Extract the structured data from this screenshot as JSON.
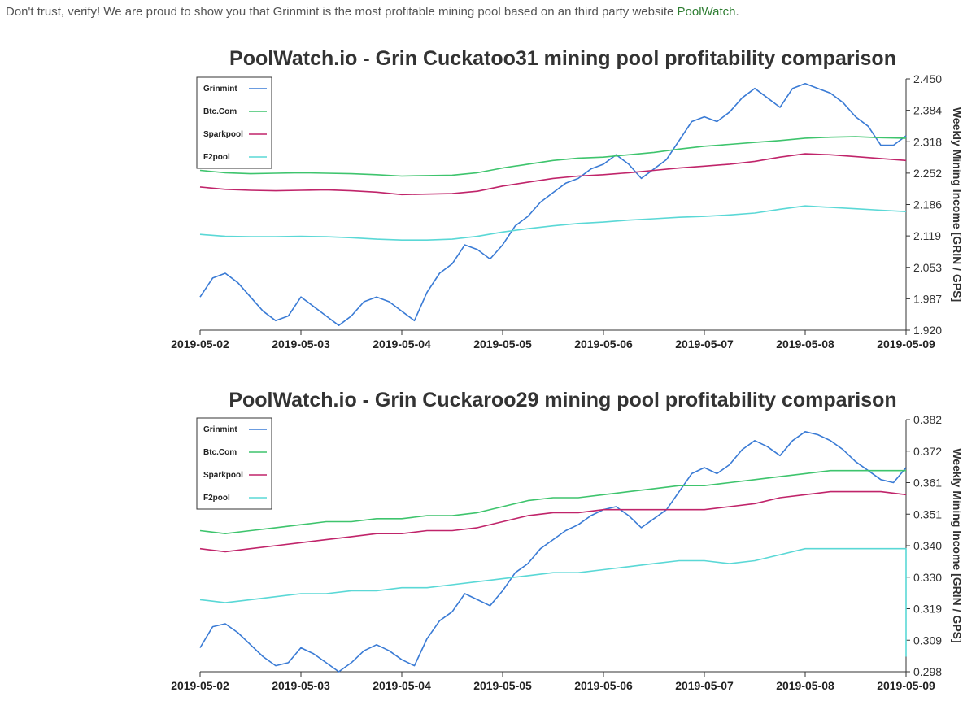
{
  "intro": {
    "text": "Don't trust, verify! We are proud to show you that Grinmint is the most profitable mining pool based on an third party website ",
    "link": "PoolWatch",
    "suffix": "."
  },
  "chart_data": [
    {
      "type": "line",
      "title": "PoolWatch.io - Grin Cuckatoo31 mining pool profitability comparison",
      "xlabel": "",
      "ylabel": "Weekly Mining Income [GRIN / GPS]",
      "x_ticks": [
        "2019-05-02",
        "2019-05-03",
        "2019-05-04",
        "2019-05-05",
        "2019-05-06",
        "2019-05-07",
        "2019-05-08",
        "2019-05-09"
      ],
      "y_ticks": [
        "1.920",
        "1.987",
        "2.053",
        "2.119",
        "2.186",
        "2.252",
        "2.318",
        "2.384",
        "2.450"
      ],
      "ylim": [
        1.92,
        2.45
      ],
      "legend_position": "top-left",
      "series": [
        {
          "name": "Grinmint",
          "color": "#3a7bd5",
          "x": [
            0,
            0.125,
            0.25,
            0.375,
            0.5,
            0.625,
            0.75,
            0.875,
            1,
            1.125,
            1.25,
            1.375,
            1.5,
            1.625,
            1.75,
            1.875,
            2,
            2.125,
            2.25,
            2.375,
            2.5,
            2.625,
            2.75,
            2.875,
            3,
            3.125,
            3.25,
            3.375,
            3.5,
            3.625,
            3.75,
            3.875,
            4,
            4.125,
            4.25,
            4.375,
            4.5,
            4.625,
            4.75,
            4.875,
            5,
            5.125,
            5.25,
            5.375,
            5.5,
            5.625,
            5.75,
            5.875,
            6,
            6.125,
            6.25,
            6.375,
            6.5,
            6.625,
            6.75,
            6.875,
            7
          ],
          "values": [
            1.99,
            2.03,
            2.04,
            2.02,
            1.99,
            1.96,
            1.94,
            1.95,
            1.99,
            1.97,
            1.95,
            1.93,
            1.95,
            1.98,
            1.99,
            1.98,
            1.96,
            1.94,
            2.0,
            2.04,
            2.06,
            2.1,
            2.09,
            2.07,
            2.1,
            2.14,
            2.16,
            2.19,
            2.21,
            2.23,
            2.24,
            2.26,
            2.27,
            2.29,
            2.27,
            2.24,
            2.26,
            2.28,
            2.32,
            2.36,
            2.37,
            2.36,
            2.38,
            2.41,
            2.43,
            2.41,
            2.39,
            2.43,
            2.44,
            2.43,
            2.42,
            2.4,
            2.37,
            2.35,
            2.31,
            2.31,
            2.33
          ]
        },
        {
          "name": "Btc.Com",
          "color": "#3ec46d",
          "x": [
            0,
            0.25,
            0.5,
            0.75,
            1,
            1.25,
            1.5,
            1.75,
            2,
            2.25,
            2.5,
            2.75,
            3,
            3.25,
            3.5,
            3.75,
            4,
            4.25,
            4.5,
            4.75,
            5,
            5.25,
            5.5,
            5.75,
            6,
            6.25,
            6.5,
            6.75,
            7
          ],
          "values": [
            2.257,
            2.252,
            2.25,
            2.251,
            2.252,
            2.251,
            2.25,
            2.248,
            2.245,
            2.246,
            2.247,
            2.252,
            2.262,
            2.27,
            2.278,
            2.283,
            2.285,
            2.29,
            2.295,
            2.302,
            2.308,
            2.312,
            2.316,
            2.32,
            2.325,
            2.327,
            2.328,
            2.326,
            2.325
          ]
        },
        {
          "name": "Sparkpool",
          "color": "#c0246a",
          "x": [
            0,
            0.25,
            0.5,
            0.75,
            1,
            1.25,
            1.5,
            1.75,
            2,
            2.25,
            2.5,
            2.75,
            3,
            3.25,
            3.5,
            3.75,
            4,
            4.25,
            4.5,
            4.75,
            5,
            5.25,
            5.5,
            5.75,
            6,
            6.25,
            6.5,
            6.75,
            7
          ],
          "values": [
            2.222,
            2.217,
            2.215,
            2.214,
            2.215,
            2.216,
            2.214,
            2.211,
            2.206,
            2.207,
            2.208,
            2.213,
            2.224,
            2.232,
            2.24,
            2.245,
            2.248,
            2.252,
            2.257,
            2.262,
            2.266,
            2.27,
            2.276,
            2.285,
            2.292,
            2.29,
            2.286,
            2.282,
            2.278
          ]
        },
        {
          "name": "F2pool",
          "color": "#5ad8d6",
          "x": [
            0,
            0.25,
            0.5,
            0.75,
            1,
            1.25,
            1.5,
            1.75,
            2,
            2.25,
            2.5,
            2.75,
            3,
            3.25,
            3.5,
            3.75,
            4,
            4.25,
            4.5,
            4.75,
            5,
            5.25,
            5.5,
            5.75,
            6,
            6.25,
            6.5,
            6.75,
            7
          ],
          "values": [
            2.122,
            2.118,
            2.117,
            2.117,
            2.118,
            2.117,
            2.115,
            2.112,
            2.11,
            2.11,
            2.112,
            2.118,
            2.127,
            2.134,
            2.14,
            2.145,
            2.148,
            2.152,
            2.155,
            2.158,
            2.16,
            2.163,
            2.167,
            2.175,
            2.182,
            2.179,
            2.176,
            2.173,
            2.17
          ]
        }
      ]
    },
    {
      "type": "line",
      "title": "PoolWatch.io - Grin Cuckaroo29 mining pool profitability comparison",
      "xlabel": "",
      "ylabel": "Weekly Mining Income [GRIN / GPS]",
      "x_ticks": [
        "2019-05-02",
        "2019-05-03",
        "2019-05-04",
        "2019-05-05",
        "2019-05-06",
        "2019-05-07",
        "2019-05-08",
        "2019-05-09"
      ],
      "y_ticks": [
        "0.298",
        "0.309",
        "0.319",
        "0.330",
        "0.340",
        "0.351",
        "0.361",
        "0.372",
        "0.382"
      ],
      "ylim": [
        0.298,
        0.382
      ],
      "legend_position": "top-left",
      "series": [
        {
          "name": "Grinmint",
          "color": "#3a7bd5",
          "x": [
            0,
            0.125,
            0.25,
            0.375,
            0.5,
            0.625,
            0.75,
            0.875,
            1,
            1.125,
            1.25,
            1.375,
            1.5,
            1.625,
            1.75,
            1.875,
            2,
            2.125,
            2.25,
            2.375,
            2.5,
            2.625,
            2.75,
            2.875,
            3,
            3.125,
            3.25,
            3.375,
            3.5,
            3.625,
            3.75,
            3.875,
            4,
            4.125,
            4.25,
            4.375,
            4.5,
            4.625,
            4.75,
            4.875,
            5,
            5.125,
            5.25,
            5.375,
            5.5,
            5.625,
            5.75,
            5.875,
            6,
            6.125,
            6.25,
            6.375,
            6.5,
            6.625,
            6.75,
            6.875,
            7
          ],
          "values": [
            0.306,
            0.313,
            0.314,
            0.311,
            0.307,
            0.303,
            0.3,
            0.301,
            0.306,
            0.304,
            0.301,
            0.298,
            0.301,
            0.305,
            0.307,
            0.305,
            0.302,
            0.3,
            0.309,
            0.315,
            0.318,
            0.324,
            0.322,
            0.32,
            0.325,
            0.331,
            0.334,
            0.339,
            0.342,
            0.345,
            0.347,
            0.35,
            0.352,
            0.353,
            0.35,
            0.346,
            0.349,
            0.352,
            0.358,
            0.364,
            0.366,
            0.364,
            0.367,
            0.372,
            0.375,
            0.373,
            0.37,
            0.375,
            0.378,
            0.377,
            0.375,
            0.372,
            0.368,
            0.365,
            0.362,
            0.361,
            0.366
          ]
        },
        {
          "name": "Btc.Com",
          "color": "#3ec46d",
          "x": [
            0,
            0.25,
            0.5,
            0.75,
            1,
            1.25,
            1.5,
            1.75,
            2,
            2.25,
            2.5,
            2.75,
            3,
            3.25,
            3.5,
            3.75,
            4,
            4.25,
            4.5,
            4.75,
            5,
            5.25,
            5.5,
            5.75,
            6,
            6.25,
            6.5,
            6.75,
            7
          ],
          "values": [
            0.345,
            0.344,
            0.345,
            0.346,
            0.347,
            0.348,
            0.348,
            0.349,
            0.349,
            0.35,
            0.35,
            0.351,
            0.353,
            0.355,
            0.356,
            0.356,
            0.357,
            0.358,
            0.359,
            0.36,
            0.36,
            0.361,
            0.362,
            0.363,
            0.364,
            0.365,
            0.365,
            0.365,
            0.365
          ]
        },
        {
          "name": "Sparkpool",
          "color": "#c0246a",
          "x": [
            0,
            0.25,
            0.5,
            0.75,
            1,
            1.25,
            1.5,
            1.75,
            2,
            2.25,
            2.5,
            2.75,
            3,
            3.25,
            3.5,
            3.75,
            4,
            4.25,
            4.5,
            4.75,
            5,
            5.25,
            5.5,
            5.75,
            6,
            6.25,
            6.5,
            6.75,
            7
          ],
          "values": [
            0.339,
            0.338,
            0.339,
            0.34,
            0.341,
            0.342,
            0.343,
            0.344,
            0.344,
            0.345,
            0.345,
            0.346,
            0.348,
            0.35,
            0.351,
            0.351,
            0.352,
            0.352,
            0.352,
            0.352,
            0.352,
            0.353,
            0.354,
            0.356,
            0.357,
            0.358,
            0.358,
            0.358,
            0.357
          ]
        },
        {
          "name": "F2pool",
          "color": "#5ad8d6",
          "x": [
            0,
            0.25,
            0.5,
            0.75,
            1,
            1.25,
            1.5,
            1.75,
            2,
            2.25,
            2.5,
            2.75,
            3,
            3.25,
            3.5,
            3.75,
            4,
            4.25,
            4.5,
            4.75,
            5,
            5.25,
            5.5,
            5.75,
            6,
            6.25,
            6.5,
            6.75,
            7,
            7
          ],
          "values": [
            0.322,
            0.321,
            0.322,
            0.323,
            0.324,
            0.324,
            0.325,
            0.325,
            0.326,
            0.326,
            0.327,
            0.328,
            0.329,
            0.33,
            0.331,
            0.331,
            0.332,
            0.333,
            0.334,
            0.335,
            0.335,
            0.334,
            0.335,
            0.337,
            0.339,
            0.339,
            0.339,
            0.339,
            0.339,
            0.303
          ]
        }
      ]
    }
  ]
}
